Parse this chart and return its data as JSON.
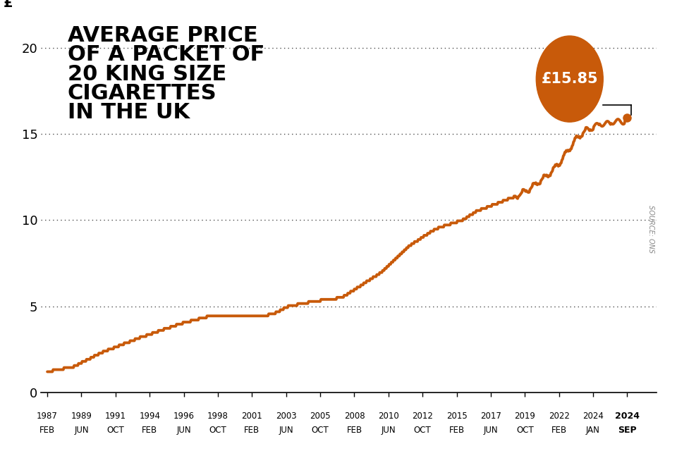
{
  "title_lines": [
    "AVERAGE PRICE",
    "OF A PACKET OF",
    "20 KING SIZE",
    "CIGARETTES",
    "IN THE UK"
  ],
  "ylabel": "£",
  "line_color": "#c85a0a",
  "background_color": "#ffffff",
  "annotation_color": "#c85a0a",
  "annotation_text": "£15.85",
  "annotation_text_color": "#ffffff",
  "source_text": "SOURCE: ONS",
  "yticks": [
    0,
    5,
    10,
    15,
    20
  ],
  "ylim": [
    0,
    22
  ],
  "x_labels": [
    [
      "1987",
      "FEB"
    ],
    [
      "1989",
      "JUN"
    ],
    [
      "1991",
      "OCT"
    ],
    [
      "1994",
      "FEB"
    ],
    [
      "1996",
      "JUN"
    ],
    [
      "1998",
      "OCT"
    ],
    [
      "2001",
      "FEB"
    ],
    [
      "2003",
      "JUN"
    ],
    [
      "2005",
      "OCT"
    ],
    [
      "2008",
      "FEB"
    ],
    [
      "2010",
      "JUN"
    ],
    [
      "2012",
      "OCT"
    ],
    [
      "2015",
      "FEB"
    ],
    [
      "2017",
      "JUN"
    ],
    [
      "2019",
      "OCT"
    ],
    [
      "2022",
      "FEB"
    ],
    [
      "2024",
      "JAN"
    ],
    [
      "2024",
      "SEP"
    ]
  ],
  "key_points_x": [
    0,
    2,
    4,
    7,
    10,
    12,
    14,
    16,
    17,
    18,
    20,
    22,
    25,
    27,
    29,
    31,
    32,
    33,
    34,
    35,
    36,
    36.5,
    37,
    37.5,
    38,
    38.5,
    39,
    39.5,
    40,
    40.5,
    41,
    41.5,
    42,
    42.5,
    43,
    43.3
  ],
  "key_points_y": [
    1.2,
    1.5,
    2.3,
    3.2,
    4.0,
    4.4,
    4.5,
    4.4,
    4.6,
    5.0,
    5.3,
    5.5,
    7.0,
    8.5,
    9.5,
    10.0,
    10.5,
    10.8,
    11.1,
    11.4,
    11.8,
    12.1,
    12.4,
    12.7,
    13.1,
    13.6,
    14.2,
    14.7,
    15.1,
    15.3,
    15.5,
    15.6,
    15.65,
    15.7,
    15.75,
    15.85
  ],
  "end_value": 15.85,
  "xlim": [
    -0.5,
    45.5
  ]
}
